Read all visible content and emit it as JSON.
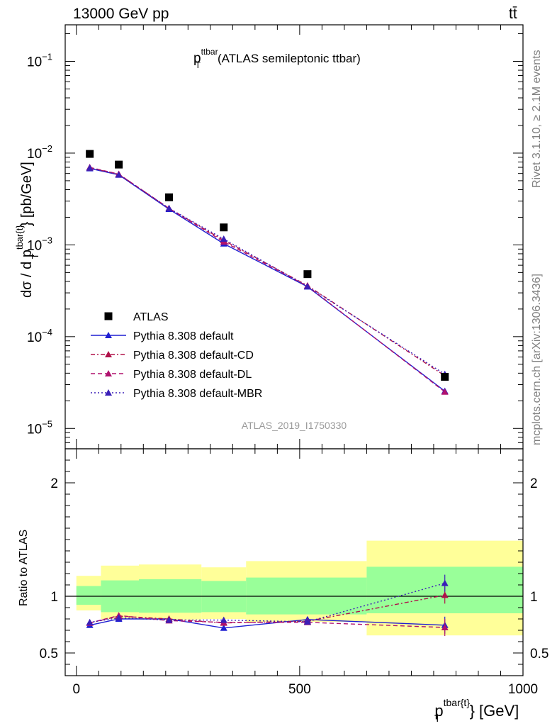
{
  "header": {
    "energy_label": "13000 GeV pp",
    "process_label": "tt̄",
    "rivet_label": "Rivet 3.1.10, ≥ 2.1M events",
    "mcplots_label": "mcplots.cern.ch [arXiv:1306.3436]"
  },
  "chart_data": [
    {
      "type": "line",
      "panel": "main",
      "title_main": "p",
      "title_sup": "ttbar",
      "title_sub": "T",
      "title_rest": "(ATLAS semileptonic ttbar)",
      "ylabel": "dσ / d p_T^{tbar{t}} [pb/GeV]",
      "ylabel_prefix": "dσ / d p",
      "ylabel_sup": "tbar{t}",
      "ylabel_sub": "T",
      "ylabel_suffix": "} [pb/GeV]",
      "ylog": true,
      "ylim": [
        6e-06,
        0.25
      ],
      "xlim": [
        -25,
        1000
      ],
      "yticks": [
        {
          "value": 0.1,
          "base": "10",
          "exp": "−1"
        },
        {
          "value": 0.01,
          "base": "10",
          "exp": "−2"
        },
        {
          "value": 0.001,
          "base": "10",
          "exp": "−3"
        },
        {
          "value": 0.0001,
          "base": "10",
          "exp": "−4"
        },
        {
          "value": 1e-05,
          "base": "10",
          "exp": "−5"
        }
      ],
      "watermark": "ATLAS_2019_I1750330",
      "x": [
        30,
        95,
        207.5,
        330,
        517.5,
        825
      ],
      "data": {
        "name": "ATLAS",
        "values": [
          0.0098,
          0.0075,
          0.0033,
          0.00155,
          0.00048,
          3.65e-05
        ]
      },
      "series": [
        {
          "name": "Pythia 8.308 default",
          "color": "#1f1fd2",
          "dash": "",
          "values": [
            0.0068,
            0.0058,
            0.00245,
            0.00103,
            0.00035,
            2.55e-05
          ]
        },
        {
          "name": "Pythia 8.308 default-CD",
          "color": "#b0124a",
          "dash": "6,3,2,3",
          "values": [
            0.0069,
            0.0059,
            0.0025,
            0.00112,
            0.00036,
            3.75e-05
          ]
        },
        {
          "name": "Pythia 8.308 default-DL",
          "color": "#b0126e",
          "dash": "6,4",
          "values": [
            0.007,
            0.0059,
            0.0025,
            0.00108,
            0.000355,
            2.5e-05
          ]
        },
        {
          "name": "Pythia 8.308 default-MBR",
          "color": "#3a1fb8",
          "dash": "2,3",
          "values": [
            0.0069,
            0.0058,
            0.0025,
            0.00116,
            0.000352,
            3.9e-05
          ]
        }
      ],
      "legend_position": "lower-left"
    },
    {
      "type": "line",
      "panel": "ratio",
      "ylabel": "Ratio to ATLAS",
      "ylim": [
        0.3,
        2.3
      ],
      "yticks": [
        {
          "value": 2,
          "label": "2"
        },
        {
          "value": 1,
          "label": "1"
        },
        {
          "value": 0.5,
          "label": "0.5"
        }
      ],
      "xlabel_main": "p",
      "xlabel_sup": "tbar{t}",
      "xlabel_sub": "T",
      "xlabel_suffix": "} [GeV]",
      "xticks": [
        {
          "value": 0,
          "label": "0"
        },
        {
          "value": 500,
          "label": "500"
        },
        {
          "value": 1000,
          "label": "1000"
        }
      ],
      "bins": [
        {
          "lo": 0,
          "hi": 55,
          "g_lo": 0.925,
          "g_hi": 1.09,
          "y_lo": 0.875,
          "y_hi": 1.18
        },
        {
          "lo": 55,
          "hi": 140,
          "g_lo": 0.86,
          "g_hi": 1.14,
          "y_lo": 0.8,
          "y_hi": 1.27
        },
        {
          "lo": 140,
          "hi": 280,
          "g_lo": 0.855,
          "g_hi": 1.15,
          "y_lo": 0.795,
          "y_hi": 1.28
        },
        {
          "lo": 280,
          "hi": 380,
          "g_lo": 0.86,
          "g_hi": 1.135,
          "y_lo": 0.8,
          "y_hi": 1.255
        },
        {
          "lo": 380,
          "hi": 650,
          "g_lo": 0.84,
          "g_hi": 1.165,
          "y_lo": 0.775,
          "y_hi": 1.31
        },
        {
          "lo": 650,
          "hi": 1000,
          "g_lo": 0.85,
          "g_hi": 1.26,
          "y_lo": 0.655,
          "y_hi": 1.49
        }
      ],
      "series": [
        {
          "name": "Pythia 8.308 default",
          "values": [
            0.745,
            0.8,
            0.8,
            0.72,
            0.795,
            0.745
          ]
        },
        {
          "name": "Pythia 8.308 default-CD",
          "values": [
            0.765,
            0.825,
            0.8,
            0.765,
            0.78,
            1.01
          ]
        },
        {
          "name": "Pythia 8.308 default-DL",
          "values": [
            0.765,
            0.83,
            0.785,
            0.77,
            0.77,
            0.725
          ]
        },
        {
          "name": "Pythia 8.308 default-MBR",
          "values": [
            0.77,
            0.81,
            0.79,
            0.79,
            0.775,
            1.115
          ]
        }
      ]
    }
  ]
}
